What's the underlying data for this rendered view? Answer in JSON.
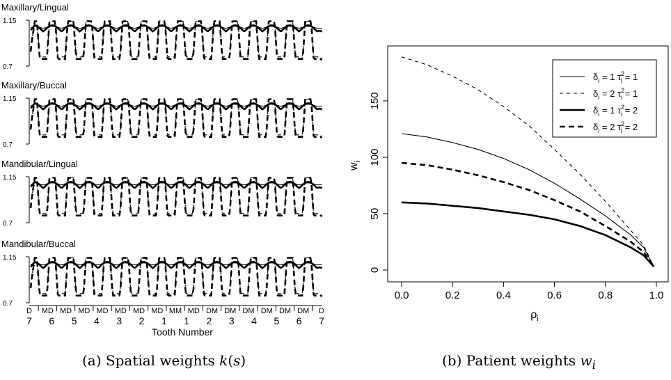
{
  "captions": {
    "a": "(a) Spatial weights k(s)",
    "b": "(b) Patient weights w_i"
  },
  "chart_data": [
    {
      "type": "line",
      "id": "spatial-weights",
      "panels": [
        {
          "title": "Maxillary/Lingual"
        },
        {
          "title": "Maxillary/Buccal"
        },
        {
          "title": "Mandibular/Lingual"
        },
        {
          "title": "Mandibular/Buccal"
        }
      ],
      "yticks": [
        "1.15",
        "0.7"
      ],
      "ylim": [
        0.7,
        1.15
      ],
      "xlabel": "Tooth Number",
      "site_labels": [
        "D",
        "MD",
        "MD",
        "MD",
        "MD",
        "MD",
        "MD",
        "MD",
        "MM",
        "MD",
        "DM",
        "DM",
        "DM",
        "DM",
        "DM",
        "DM",
        "D"
      ],
      "tooth_numbers": [
        "7",
        "6",
        "5",
        "4",
        "3",
        "2",
        "1",
        "1",
        "2",
        "3",
        "4",
        "5",
        "6",
        "7"
      ],
      "series": [
        {
          "style": "thin-solid",
          "peak": 1.09,
          "trough": 1.07
        },
        {
          "style": "thin-dashed",
          "peak": 1.14,
          "trough": 0.79
        },
        {
          "style": "thick-solid",
          "peak": 1.1,
          "trough": 1.04
        },
        {
          "style": "thick-dashed",
          "peak": 1.14,
          "trough": 0.77
        }
      ]
    },
    {
      "type": "line",
      "id": "patient-weights",
      "xlabel": "ρi",
      "ylabel": "wi",
      "xlim": [
        0,
        1
      ],
      "ylim": [
        0,
        190
      ],
      "xticks": [
        0,
        0.2,
        0.4,
        0.6,
        0.8,
        1.0
      ],
      "xticklabels": [
        "0.0",
        "0.2",
        "0.4",
        "0.6",
        "0.8",
        "1.0"
      ],
      "yticks": [
        0,
        50,
        100,
        150
      ],
      "legend_position": "top-right",
      "series": [
        {
          "delta": "δi = 1",
          "tau": "τi2 = 1",
          "style": "thin-solid",
          "x": [
            0,
            0.1,
            0.2,
            0.3,
            0.4,
            0.5,
            0.6,
            0.7,
            0.8,
            0.9,
            0.95,
            0.99
          ],
          "y": [
            121,
            118,
            113,
            107,
            99,
            89,
            77,
            63,
            48,
            31,
            20,
            3
          ]
        },
        {
          "delta": "δi = 2",
          "tau": "τi2 = 1",
          "style": "thin-dashed",
          "x": [
            0,
            0.1,
            0.2,
            0.3,
            0.4,
            0.5,
            0.6,
            0.7,
            0.8,
            0.9,
            0.95,
            0.99
          ],
          "y": [
            189,
            182,
            172,
            160,
            145,
            128,
            107,
            85,
            61,
            35,
            22,
            3
          ]
        },
        {
          "delta": "δi = 1",
          "tau": "τi2 = 2",
          "style": "thick-solid",
          "x": [
            0,
            0.1,
            0.2,
            0.3,
            0.4,
            0.5,
            0.6,
            0.7,
            0.8,
            0.9,
            0.95,
            0.99
          ],
          "y": [
            60,
            59,
            57,
            55,
            52,
            49,
            45,
            39,
            31,
            20,
            13,
            3
          ]
        },
        {
          "delta": "δi = 2",
          "tau": "τi2 = 2",
          "style": "thick-dashed",
          "x": [
            0,
            0.1,
            0.2,
            0.3,
            0.4,
            0.5,
            0.6,
            0.7,
            0.8,
            0.9,
            0.95,
            0.99
          ],
          "y": [
            95,
            93,
            89,
            84,
            78,
            71,
            62,
            52,
            39,
            25,
            16,
            3
          ]
        }
      ]
    }
  ]
}
